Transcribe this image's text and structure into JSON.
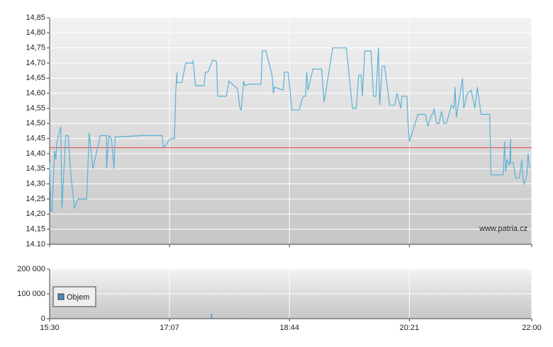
{
  "chart_data": [
    {
      "type": "line",
      "x": [
        930,
        931,
        932,
        934,
        935,
        936,
        939,
        940,
        943,
        945,
        947,
        950,
        953,
        960,
        962,
        965,
        971,
        976,
        976,
        978,
        980,
        982,
        983,
        1005,
        1021,
        1022,
        1028,
        1031,
        1032,
        1033,
        1033,
        1037,
        1040,
        1046,
        1046,
        1048,
        1055,
        1056,
        1058,
        1062,
        1065,
        1066,
        1073,
        1075,
        1082,
        1084,
        1085,
        1087,
        1088,
        1091,
        1101,
        1102,
        1105,
        1110,
        1111,
        1112,
        1119,
        1120,
        1123,
        1126,
        1132,
        1135,
        1137,
        1138,
        1139,
        1143,
        1150,
        1152,
        1159,
        1170,
        1175,
        1178,
        1180,
        1182,
        1183,
        1185,
        1190,
        1192,
        1194,
        1196,
        1197,
        1199,
        1201,
        1205,
        1209,
        1211,
        1214,
        1215,
        1219,
        1220,
        1221,
        1228,
        1234,
        1236,
        1239,
        1240,
        1241,
        1243,
        1245,
        1247,
        1249,
        1251,
        1255,
        1257,
        1258,
        1259,
        1261,
        1264,
        1265,
        1268,
        1271,
        1274,
        1276,
        1279,
        1286,
        1287,
        1297,
        1298,
        1299,
        1300,
        1302,
        1303,
        1303,
        1305,
        1307,
        1310,
        1312,
        1313,
        1314,
        1316,
        1317,
        1318,
        1319
      ],
      "values": [
        14.37,
        14.21,
        14.21,
        14.41,
        14.38,
        14.44,
        14.49,
        14.22,
        14.46,
        14.46,
        14.34,
        14.22,
        14.25,
        14.25,
        14.47,
        14.35,
        14.46,
        14.46,
        14.35,
        14.46,
        14.45,
        14.35,
        14.455,
        14.46,
        14.46,
        14.42,
        14.45,
        14.45,
        14.6,
        14.67,
        14.635,
        14.635,
        14.7,
        14.7,
        14.71,
        14.625,
        14.625,
        14.67,
        14.67,
        14.71,
        14.705,
        14.59,
        14.59,
        14.64,
        14.615,
        14.55,
        14.545,
        14.64,
        14.625,
        14.63,
        14.63,
        14.74,
        14.74,
        14.66,
        14.6,
        14.62,
        14.61,
        14.67,
        14.67,
        14.545,
        14.545,
        14.59,
        14.59,
        14.67,
        14.61,
        14.68,
        14.68,
        14.57,
        14.75,
        14.75,
        14.55,
        14.55,
        14.66,
        14.66,
        14.59,
        14.74,
        14.74,
        14.59,
        14.59,
        14.75,
        14.56,
        14.69,
        14.69,
        14.56,
        14.56,
        14.6,
        14.55,
        14.59,
        14.59,
        14.5,
        14.44,
        14.53,
        14.53,
        14.49,
        14.53,
        14.53,
        14.55,
        14.5,
        14.5,
        14.54,
        14.5,
        14.5,
        14.56,
        14.55,
        14.62,
        14.52,
        14.57,
        14.65,
        14.55,
        14.6,
        14.61,
        14.55,
        14.62,
        14.53,
        14.53,
        14.33,
        14.33,
        14.44,
        14.34,
        14.38,
        14.36,
        14.45,
        14.37,
        14.37,
        14.32,
        14.32,
        14.38,
        14.31,
        14.3,
        14.33,
        14.4,
        14.36,
        14.35
      ],
      "color": "#5ab2d8",
      "reference_value": 14.42,
      "reference_color": "#e06060",
      "xlim": [
        930,
        1320
      ],
      "ylim": [
        14.1,
        14.85
      ],
      "yticks": [
        {
          "value": 14.1,
          "label": "14.10"
        },
        {
          "value": 14.15,
          "label": "14,15"
        },
        {
          "value": 14.2,
          "label": "14,20"
        },
        {
          "value": 14.25,
          "label": "14,25"
        },
        {
          "value": 14.3,
          "label": "14,30"
        },
        {
          "value": 14.35,
          "label": "14,35"
        },
        {
          "value": 14.4,
          "label": "14,40"
        },
        {
          "value": 14.45,
          "label": "14,45"
        },
        {
          "value": 14.5,
          "label": "14,50"
        },
        {
          "value": 14.55,
          "label": "14,55"
        },
        {
          "value": 14.6,
          "label": "14,60"
        },
        {
          "value": 14.65,
          "label": "14,65"
        },
        {
          "value": 14.7,
          "label": "14,70"
        },
        {
          "value": 14.75,
          "label": "14,75"
        },
        {
          "value": 14.8,
          "label": "14,80"
        },
        {
          "value": 14.85,
          "label": "14,85"
        }
      ],
      "watermark": "www.patria.cz"
    },
    {
      "type": "bar",
      "x": [
        1000,
        1010,
        1028,
        1040,
        1050,
        1061,
        1075,
        1085,
        1090,
        1110,
        1130,
        1150,
        1180,
        1200,
        1230,
        1260,
        1290,
        1310
      ],
      "series": [
        {
          "name": "Objem",
          "color": "#4a8fc4",
          "values": [
            2000,
            1500,
            3000,
            2500,
            2000,
            20000,
            2500,
            4000,
            3000,
            2000,
            2500,
            1500,
            2000,
            2000,
            2500,
            2000,
            1500,
            2500
          ]
        }
      ],
      "xlim": [
        930,
        1320
      ],
      "ylim": [
        0,
        200000
      ],
      "yticks": [
        {
          "value": 0,
          "label": "0"
        },
        {
          "value": 100000,
          "label": "100 000"
        },
        {
          "value": 200000,
          "label": "200 000"
        }
      ],
      "xticks": [
        {
          "value": 930,
          "label": "15:30"
        },
        {
          "value": 1027,
          "label": "17:07"
        },
        {
          "value": 1124,
          "label": "18:44"
        },
        {
          "value": 1221,
          "label": "20:21"
        },
        {
          "value": 1320,
          "label": "22:00"
        }
      ],
      "legend": true
    }
  ]
}
